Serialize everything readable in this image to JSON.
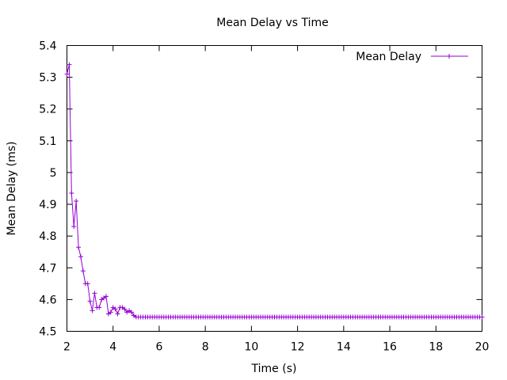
{
  "chart_data": {
    "type": "line",
    "title": "Mean Delay vs Time",
    "xlabel": "Time (s)",
    "ylabel": "Mean Delay (ms)",
    "xlim": [
      2,
      20
    ],
    "ylim": [
      4.5,
      5.4
    ],
    "xticks": [
      2,
      4,
      6,
      8,
      10,
      12,
      14,
      16,
      18,
      20
    ],
    "yticks": [
      4.5,
      4.6,
      4.7,
      4.8,
      4.9,
      5.0,
      5.1,
      5.2,
      5.3,
      5.4
    ],
    "ytick_labels": [
      "4.5",
      "4.6",
      "4.7",
      "4.8",
      "4.9",
      "5",
      "5.1",
      "5.2",
      "5.3",
      "5.4"
    ],
    "grid": false,
    "legend_position": "top-right",
    "series": [
      {
        "name": "Mean Delay",
        "color": "#9400d3",
        "marker": "plus",
        "steady_value": 4.545,
        "steady_from": 5.0,
        "steady_to": 20.0,
        "steady_step": 0.1,
        "points": [
          [
            2.0,
            5.31
          ],
          [
            2.1,
            5.34
          ],
          [
            2.2,
            4.935
          ],
          [
            2.3,
            4.83
          ],
          [
            2.4,
            4.91
          ],
          [
            2.5,
            4.765
          ],
          [
            2.6,
            4.735
          ],
          [
            2.7,
            4.69
          ],
          [
            2.8,
            4.65
          ],
          [
            2.9,
            4.65
          ],
          [
            3.0,
            4.595
          ],
          [
            3.1,
            4.565
          ],
          [
            3.2,
            4.62
          ],
          [
            3.3,
            4.575
          ],
          [
            3.4,
            4.575
          ],
          [
            3.5,
            4.6
          ],
          [
            3.6,
            4.605
          ],
          [
            3.7,
            4.61
          ],
          [
            3.8,
            4.555
          ],
          [
            3.9,
            4.56
          ],
          [
            4.0,
            4.575
          ],
          [
            4.1,
            4.57
          ],
          [
            4.2,
            4.555
          ],
          [
            4.3,
            4.575
          ],
          [
            4.4,
            4.575
          ],
          [
            4.5,
            4.57
          ],
          [
            4.6,
            4.56
          ],
          [
            4.7,
            4.565
          ],
          [
            4.8,
            4.56
          ],
          [
            4.9,
            4.55
          ]
        ]
      }
    ]
  }
}
